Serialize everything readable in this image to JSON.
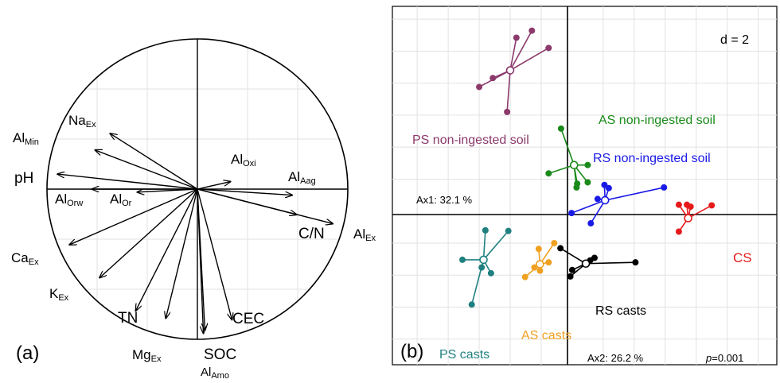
{
  "chart_data": [
    {
      "type": "correlation-circle",
      "panel_label": "(a)",
      "vectors": [
        {
          "name": "NaEx",
          "base": "Na",
          "sub": "Ex",
          "x": -0.58,
          "y": 0.37
        },
        {
          "name": "AlMin",
          "base": "Al",
          "sub": "Min",
          "x": -0.68,
          "y": 0.26
        },
        {
          "name": "pH",
          "base": "pH",
          "sub": "",
          "x": -0.93,
          "y": 0.1
        },
        {
          "name": "AlOrw",
          "base": "Al",
          "sub": "Orw",
          "x": -0.7,
          "y": 0.0
        },
        {
          "name": "AlOr",
          "base": "Al",
          "sub": "Or",
          "x": -0.4,
          "y": -0.02
        },
        {
          "name": "AlOxi",
          "base": "Al",
          "sub": "Oxi",
          "x": 0.22,
          "y": 0.05
        },
        {
          "name": "AlAag",
          "base": "Al",
          "sub": "Aag",
          "x": 0.63,
          "y": -0.04
        },
        {
          "name": "C/N",
          "base": "C/N",
          "sub": "",
          "x": 0.66,
          "y": -0.17
        },
        {
          "name": "AlEx",
          "base": "Al",
          "sub": "Ex",
          "x": 0.9,
          "y": -0.23
        },
        {
          "name": "CaEx",
          "base": "Ca",
          "sub": "Ex",
          "x": -0.85,
          "y": -0.37
        },
        {
          "name": "KEx",
          "base": "K",
          "sub": "Ex",
          "x": -0.65,
          "y": -0.59
        },
        {
          "name": "TN",
          "base": "TN",
          "sub": "",
          "x": -0.41,
          "y": -0.81
        },
        {
          "name": "MgEx",
          "base": "Mg",
          "sub": "Ex",
          "x": -0.21,
          "y": -0.86
        },
        {
          "name": "CEC",
          "base": "CEC",
          "sub": "",
          "x": 0.23,
          "y": -0.87
        },
        {
          "name": "SOC",
          "base": "SOC",
          "sub": "",
          "x": 0.05,
          "y": -0.94
        },
        {
          "name": "AlAmo",
          "base": "Al",
          "sub": "Amo",
          "x": 0.04,
          "y": -0.96
        }
      ],
      "labels": [
        {
          "base": "Na",
          "sub": "Ex"
        },
        {
          "base": "Al",
          "sub": "Min"
        },
        {
          "base": "pH",
          "sub": ""
        },
        {
          "base": "Al",
          "sub": "Orw"
        },
        {
          "base": "Al",
          "sub": "Or"
        },
        {
          "base": "Al",
          "sub": "Oxi"
        },
        {
          "base": "Al",
          "sub": "Aag"
        },
        {
          "base": "C/N",
          "sub": ""
        },
        {
          "base": "Al",
          "sub": "Ex"
        },
        {
          "base": "Ca",
          "sub": "Ex"
        },
        {
          "base": "K",
          "sub": "Ex"
        },
        {
          "base": "TN",
          "sub": ""
        },
        {
          "base": "Mg",
          "sub": "Ex"
        },
        {
          "base": "CEC",
          "sub": ""
        },
        {
          "base": "SOC",
          "sub": ""
        },
        {
          "base": "Al",
          "sub": "Amo"
        }
      ]
    },
    {
      "type": "scatter",
      "panel_label": "(b)",
      "d_label": "d = 2",
      "ax1_label": "Ax1: 32.1 %",
      "ax2_label": "Ax2: 26.2 %",
      "p_label": "p",
      "p_value": "=0.001",
      "xlim": [
        -2.9,
        3.3
      ],
      "ylim": [
        -2.4,
        3.2
      ],
      "groups": [
        {
          "name": "PS non-ingested soil",
          "color": "#8b3a6b",
          "centroid": [
            -1.0,
            2.2
          ],
          "points": [
            [
              -0.65,
              2.82
            ],
            [
              -0.9,
              2.71
            ],
            [
              -1.28,
              2.08
            ],
            [
              -1.5,
              1.94
            ],
            [
              -1.05,
              1.55
            ],
            [
              -0.38,
              2.55
            ]
          ]
        },
        {
          "name": "AS non-ingested soil",
          "color": "#1a8a1a",
          "centroid": [
            0.03,
            0.72
          ],
          "points": [
            [
              -0.18,
              1.29
            ],
            [
              -0.38,
              0.59
            ],
            [
              0.08,
              0.43
            ],
            [
              0.25,
              0.45
            ],
            [
              0.25,
              0.72
            ],
            [
              0.07,
              0.37
            ]
          ]
        },
        {
          "name": "RS non-ingested soil",
          "color": "#1a1ae6",
          "centroid": [
            0.53,
            0.17
          ],
          "points": [
            [
              0.52,
              0.41
            ],
            [
              0.59,
              0.36
            ],
            [
              1.48,
              0.37
            ],
            [
              0.3,
              -0.19
            ],
            [
              -0.01,
              -0.03
            ],
            [
              0.41,
              0.19
            ]
          ]
        },
        {
          "name": "CS",
          "color": "#e61a1a",
          "centroid": [
            1.87,
            -0.11
          ],
          "points": [
            [
              1.72,
              0.1
            ],
            [
              1.91,
              0.07
            ],
            [
              2.25,
              0.09
            ],
            [
              1.72,
              -0.32
            ],
            [
              1.85,
              0.1
            ]
          ]
        },
        {
          "name": "PS casts",
          "color": "#208080",
          "centroid": [
            -1.43,
            -0.76
          ],
          "points": [
            [
              -1.4,
              -0.3
            ],
            [
              -1.03,
              -0.31
            ],
            [
              -1.77,
              -0.76
            ],
            [
              -1.62,
              -1.46
            ],
            [
              -1.31,
              -0.97
            ],
            [
              -1.46,
              -0.88
            ]
          ]
        },
        {
          "name": "AS casts",
          "color": "#f0a020",
          "centroid": [
            -0.52,
            -0.83
          ],
          "points": [
            [
              -0.29,
              -0.5
            ],
            [
              -0.54,
              -0.59
            ],
            [
              -0.38,
              -0.8
            ],
            [
              -0.76,
              -1.03
            ],
            [
              -0.61,
              -0.88
            ],
            [
              -0.52,
              -0.93
            ]
          ]
        },
        {
          "name": "RS casts",
          "color": "#000000",
          "centroid": [
            0.22,
            -0.82
          ],
          "points": [
            [
              -0.19,
              -0.58
            ],
            [
              0.36,
              -0.73
            ],
            [
              1.02,
              -0.8
            ],
            [
              0.0,
              -0.92
            ],
            [
              -0.03,
              -1.02
            ],
            [
              0.29,
              -0.77
            ]
          ]
        }
      ]
    }
  ]
}
